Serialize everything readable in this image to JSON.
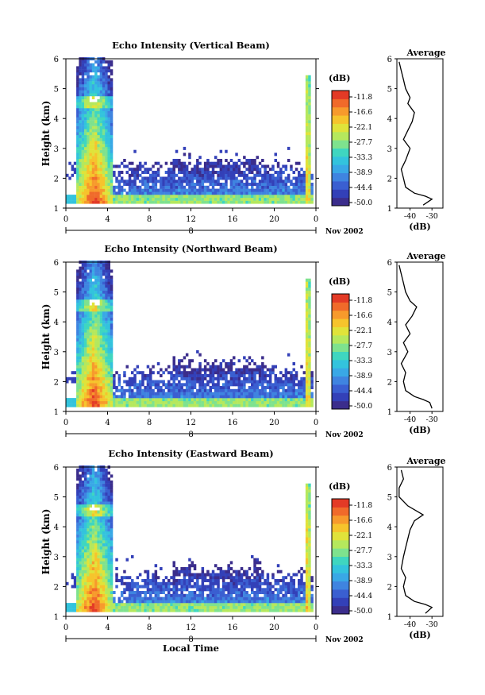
{
  "colors": {
    "scale": [
      "#3b2d8c",
      "#3340b8",
      "#3a5fd1",
      "#3f84e0",
      "#39a8e6",
      "#33c3dd",
      "#3fd6c0",
      "#7ee28e",
      "#b5e85d",
      "#e0e33a",
      "#f6c42c",
      "#f79a2c",
      "#f06a2a",
      "#e33a26"
    ]
  },
  "colorbar": {
    "unit": "(dB)",
    "ticks": [
      "-11.8",
      "-16.6",
      "-22.1",
      "-27.7",
      "-33.3",
      "-38.9",
      "-44.4",
      "-50.0"
    ]
  },
  "x_axis": {
    "ticks": [
      "0",
      "4",
      "8",
      "12",
      "16",
      "20",
      "0"
    ],
    "day_label": "8",
    "month_label": "Nov 2002",
    "xlabel": "Local Time"
  },
  "avg_axis": {
    "title": "Average",
    "ticks": [
      "-40",
      "-30"
    ],
    "label": "(dB)"
  },
  "chart_data": [
    {
      "type": "heatmap",
      "title": "Echo Intensity (Vertical Beam)",
      "xlabel": "",
      "ylabel": "Height (km)",
      "xlim": [
        0,
        24
      ],
      "ylim": [
        1,
        6
      ],
      "yticks": [
        1,
        2,
        3,
        4,
        5,
        6
      ],
      "xticks": [
        0,
        4,
        8,
        12,
        16,
        20,
        24
      ],
      "colorbar_range": [
        -50.0,
        -11.8
      ],
      "features": [
        {
          "name": "rain column",
          "x_range": [
            1.0,
            4.5
          ],
          "y_range": [
            1.2,
            6.0
          ]
        },
        {
          "name": "boundary layer echo",
          "x_range": [
            4.5,
            23.5
          ],
          "y_range": [
            1.2,
            2.5
          ]
        },
        {
          "name": "late rain burst",
          "x_range": [
            22.8,
            23.5
          ],
          "y_range": [
            1.2,
            5.5
          ]
        }
      ],
      "average_profile": {
        "height": [
          1.1,
          1.3,
          1.4,
          1.5,
          1.7,
          2.0,
          2.3,
          2.6,
          3.0,
          3.3,
          3.6,
          3.9,
          4.2,
          4.5,
          4.7,
          5.0,
          5.3,
          5.6,
          5.9
        ],
        "db": [
          -34,
          -30,
          -33,
          -38,
          -42,
          -43,
          -44,
          -42,
          -40,
          -43,
          -41,
          -39,
          -38,
          -41,
          -40,
          -42,
          -43,
          -44,
          -45
        ]
      }
    },
    {
      "type": "heatmap",
      "title": "Echo Intensity (Northward Beam)",
      "xlabel": "",
      "ylabel": "Height (km)",
      "xlim": [
        0,
        24
      ],
      "ylim": [
        1,
        6
      ],
      "yticks": [
        1,
        2,
        3,
        4,
        5,
        6
      ],
      "xticks": [
        0,
        4,
        8,
        12,
        16,
        20,
        24
      ],
      "colorbar_range": [
        -50.0,
        -11.8
      ],
      "features": [
        {
          "name": "rain column",
          "x_range": [
            1.0,
            4.5
          ],
          "y_range": [
            1.2,
            6.0
          ]
        },
        {
          "name": "boundary layer echo",
          "x_range": [
            4.5,
            23.5
          ],
          "y_range": [
            1.2,
            2.6
          ]
        },
        {
          "name": "late rain burst",
          "x_range": [
            22.8,
            23.5
          ],
          "y_range": [
            1.2,
            5.2
          ]
        }
      ],
      "average_profile": {
        "height": [
          1.1,
          1.3,
          1.4,
          1.5,
          1.7,
          2.0,
          2.3,
          2.6,
          3.0,
          3.3,
          3.6,
          3.9,
          4.2,
          4.5,
          4.7,
          5.0,
          5.3,
          5.6,
          5.9
        ],
        "db": [
          -30,
          -31,
          -34,
          -38,
          -42,
          -43,
          -42,
          -44,
          -41,
          -43,
          -40,
          -42,
          -39,
          -37,
          -40,
          -42,
          -43,
          -44,
          -45
        ]
      }
    },
    {
      "type": "heatmap",
      "title": "Echo Intensity (Eastward Beam)",
      "xlabel": "Local Time",
      "ylabel": "Height (km)",
      "xlim": [
        0,
        24
      ],
      "ylim": [
        1,
        6
      ],
      "yticks": [
        1,
        2,
        3,
        4,
        5,
        6
      ],
      "xticks": [
        0,
        4,
        8,
        12,
        16,
        20,
        24
      ],
      "colorbar_range": [
        -50.0,
        -11.8
      ],
      "features": [
        {
          "name": "rain column",
          "x_range": [
            1.0,
            4.5
          ],
          "y_range": [
            1.2,
            6.0
          ]
        },
        {
          "name": "boundary layer echo",
          "x_range": [
            4.5,
            23.5
          ],
          "y_range": [
            1.2,
            2.4
          ]
        },
        {
          "name": "late rain burst",
          "x_range": [
            22.8,
            23.5
          ],
          "y_range": [
            1.2,
            5.4
          ]
        }
      ],
      "average_profile": {
        "height": [
          1.1,
          1.3,
          1.4,
          1.5,
          1.7,
          2.0,
          2.3,
          2.6,
          3.0,
          3.3,
          3.6,
          3.9,
          4.2,
          4.4,
          4.7,
          5.0,
          5.3,
          5.6,
          5.9
        ],
        "db": [
          -33,
          -30,
          -33,
          -38,
          -42,
          -43,
          -42,
          -44,
          -43,
          -42,
          -41,
          -40,
          -38,
          -34,
          -41,
          -45,
          -45,
          -43,
          -44
        ]
      }
    }
  ]
}
